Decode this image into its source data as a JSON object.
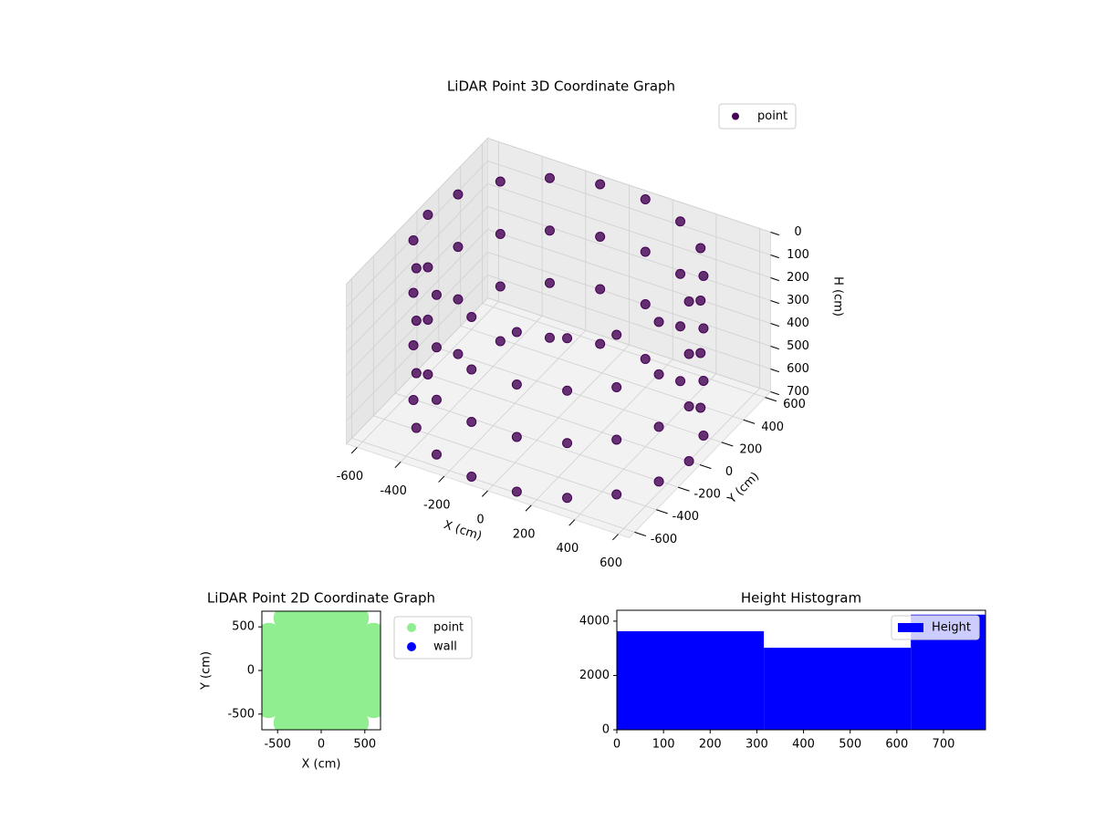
{
  "chart_data": [
    {
      "type": "scatter3d",
      "title": "LiDAR Point 3D Coordinate Graph",
      "x_label": "X (cm)",
      "y_label": "Y (cm)",
      "z_label": "H (cm)",
      "xlim": [
        -650,
        650
      ],
      "ylim": [
        -650,
        650
      ],
      "zlim": [
        700,
        0
      ],
      "xticks": [
        -600,
        -400,
        -200,
        0,
        200,
        400,
        600
      ],
      "yticks": [
        -600,
        -400,
        -200,
        0,
        200,
        400,
        600
      ],
      "zticks": [
        0,
        100,
        200,
        300,
        400,
        500,
        600,
        700
      ],
      "legend": "upper right",
      "grid": true,
      "series": [
        {
          "name": "point",
          "color": "#440154",
          "x": [
            600,
            564,
            460,
            300,
            104,
            -104,
            -300,
            -460,
            -564,
            -600,
            -564,
            -460,
            -300,
            -104,
            104,
            300,
            460,
            564,
            600,
            564,
            460,
            300,
            104,
            -104,
            -300,
            -460,
            -564,
            -600,
            -564,
            -460,
            -300,
            -104,
            104,
            300,
            460,
            564,
            600,
            564,
            460,
            300,
            104,
            -104,
            -300,
            -460,
            -564,
            -600,
            -564,
            -460,
            -300,
            -104,
            104,
            300,
            460,
            564,
            600,
            564,
            460,
            300,
            104,
            -104,
            -300,
            -460,
            -564,
            -600,
            -564,
            -460,
            -300,
            -104,
            104,
            300,
            460,
            564
          ],
          "y": [
            0,
            205,
            386,
            520,
            591,
            591,
            520,
            386,
            205,
            0,
            -205,
            -386,
            -520,
            -591,
            -591,
            -520,
            -386,
            -205,
            0,
            205,
            386,
            520,
            591,
            591,
            520,
            386,
            205,
            0,
            -205,
            -386,
            -520,
            -591,
            -591,
            -520,
            -386,
            -205,
            0,
            205,
            386,
            520,
            591,
            591,
            520,
            386,
            205,
            0,
            -205,
            -386,
            -520,
            -591,
            -591,
            -520,
            -386,
            -205,
            0,
            205,
            386,
            520,
            591,
            591,
            520,
            386,
            205,
            0,
            -205,
            -386,
            -520,
            -591,
            -591,
            -520,
            -386,
            -205
          ],
          "z": [
            0,
            0,
            0,
            0,
            0,
            0,
            0,
            0,
            0,
            0,
            0,
            0,
            0,
            0,
            0,
            0,
            0,
            0,
            230,
            230,
            230,
            230,
            230,
            230,
            230,
            230,
            230,
            230,
            230,
            230,
            230,
            230,
            230,
            230,
            230,
            230,
            460,
            460,
            460,
            460,
            460,
            460,
            460,
            460,
            460,
            460,
            460,
            460,
            460,
            460,
            460,
            460,
            460,
            460,
            700,
            700,
            700,
            700,
            700,
            700,
            700,
            700,
            700,
            700,
            700,
            700,
            700,
            700,
            700,
            700,
            700,
            700
          ]
        }
      ]
    },
    {
      "type": "scatter",
      "title": "LiDAR Point 2D Coordinate Graph",
      "x_label": "X (cm)",
      "y_label": "Y (cm)",
      "xlim": [
        -680,
        680
      ],
      "ylim": [
        -680,
        680
      ],
      "xticks": [
        -500,
        0,
        500
      ],
      "yticks": [
        -500,
        0,
        500
      ],
      "legend": "outside right",
      "series": [
        {
          "name": "point",
          "color": "#90ee90",
          "x": [
            -400,
            -200,
            0,
            200,
            400,
            -600,
            -400,
            -200,
            0,
            200,
            400,
            600,
            -600,
            -400,
            -200,
            0,
            200,
            400,
            600,
            -600,
            -400,
            -200,
            0,
            200,
            400,
            600,
            -600,
            -400,
            -200,
            0,
            200,
            400,
            600,
            -600,
            -400,
            -200,
            0,
            200,
            400,
            600,
            -400,
            -200,
            0,
            200,
            400
          ],
          "y": [
            600,
            600,
            600,
            600,
            600,
            400,
            400,
            400,
            400,
            400,
            400,
            400,
            200,
            200,
            200,
            200,
            200,
            200,
            200,
            0,
            0,
            0,
            0,
            0,
            0,
            0,
            -200,
            -200,
            -200,
            -200,
            -200,
            -200,
            -200,
            -400,
            -400,
            -400,
            -400,
            -400,
            -400,
            -400,
            -600,
            -600,
            -600,
            -600,
            -600
          ]
        },
        {
          "name": "wall",
          "color": "#0000ff",
          "x": [],
          "y": []
        }
      ]
    },
    {
      "type": "histogram",
      "title": "Height Histogram",
      "bins": [
        0,
        315,
        630,
        790
      ],
      "counts": [
        3630,
        3020,
        4240
      ],
      "xlim": [
        0,
        790
      ],
      "ylim": [
        0,
        4400
      ],
      "xticks": [
        0,
        100,
        200,
        300,
        400,
        500,
        600,
        700
      ],
      "yticks": [
        0,
        2000,
        4000
      ],
      "legend": "upper right",
      "series_name": "Height",
      "color": "#0000ff"
    }
  ]
}
